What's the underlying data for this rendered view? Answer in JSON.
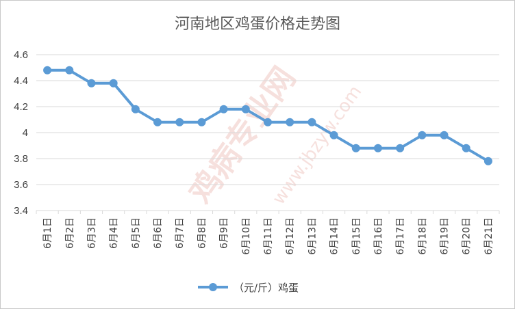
{
  "chart_data": {
    "type": "line",
    "title": "河南地区鸡蛋价格走势图",
    "categories": [
      "6月1日",
      "6月2日",
      "6月3日",
      "6月4日",
      "6月5日",
      "6月6日",
      "6月7日",
      "6月8日",
      "6月9日",
      "6月10日",
      "6月11日",
      "6月12日",
      "6月13日",
      "6月14日",
      "6月15日",
      "6月16日",
      "6月17日",
      "6月18日",
      "6月19日",
      "6月20日",
      "6月21日"
    ],
    "series": [
      {
        "name": "（元/斤）鸡蛋",
        "values": [
          4.48,
          4.48,
          4.38,
          4.38,
          4.18,
          4.08,
          4.08,
          4.08,
          4.18,
          4.18,
          4.08,
          4.08,
          4.08,
          3.98,
          3.88,
          3.88,
          3.88,
          3.98,
          3.98,
          3.88,
          3.78
        ],
        "color": "#5b9bd5"
      }
    ],
    "yticks": [
      "3.4",
      "3.6",
      "3.8",
      "4",
      "4.2",
      "4.4",
      "4.6"
    ],
    "ylim": [
      3.4,
      4.6
    ],
    "grid": true,
    "legend_position": "bottom",
    "gridline_color": "#d9d9d9"
  },
  "watermark": {
    "text_main": "鸡病专业网",
    "text_url": "www.jbzyw.com"
  }
}
